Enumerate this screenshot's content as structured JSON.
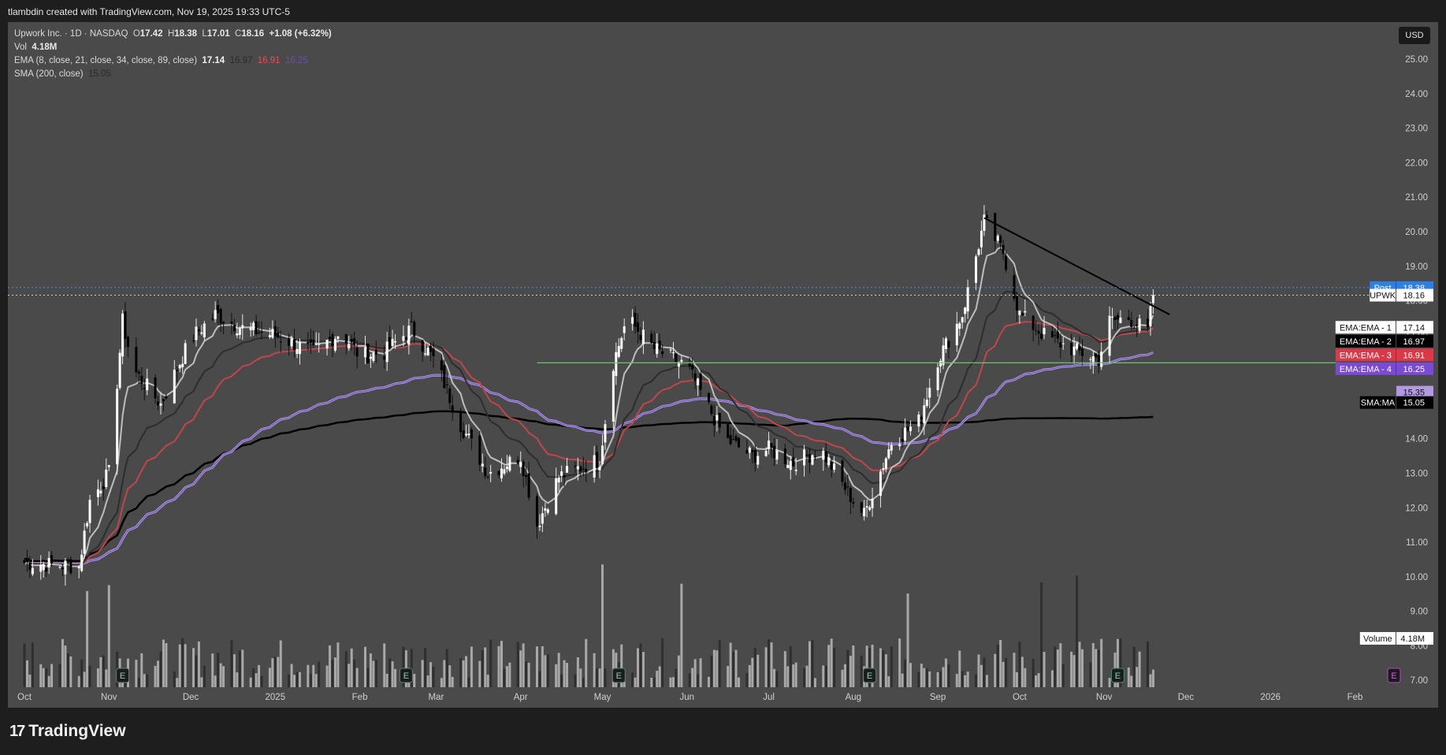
{
  "header": {
    "creator_text": "tlambdin created with TradingView.com, Nov 19, 2025 19:33 UTC-5"
  },
  "legend": {
    "symbol": "Upwork Inc. · 1D · NASDAQ",
    "o_label": "O",
    "o_value": "17.42",
    "h_label": "H",
    "h_value": "18.38",
    "l_label": "L",
    "l_value": "17.01",
    "c_label": "C",
    "c_value": "18.16",
    "change": "+1.08 (+6.32%)",
    "vol_label": "Vol",
    "vol_value": "4.18M",
    "ema_label": "EMA (8, close, 21, close, 34, close, 89, close)",
    "ema_values": [
      "17.14",
      "16.97",
      "16.91",
      "16.25"
    ],
    "sma_label": "SMA (200, close)",
    "sma_value": "15.05"
  },
  "currency": "USD",
  "branding": "TradingView",
  "colors": {
    "background": "#4a4a4a",
    "candle_up": "#ffffff",
    "candle_down": "#000000",
    "ema1": "#bdbdbd",
    "ema2": "#2d2d2d",
    "ema3": "#c0464c",
    "ema4": "#7a5cc0",
    "sma200": "#000000",
    "support_line": "#6cc46c",
    "post_tag": "#2f7fe0"
  },
  "chart_data": {
    "type": "candlestick",
    "symbol": "UPWK",
    "interval": "1D",
    "y_axis": {
      "ticks": [
        "25.00",
        "24.00",
        "23.00",
        "22.00",
        "21.00",
        "20.00",
        "19.00",
        "18.00",
        "17.00",
        "16.00",
        "15.00",
        "14.00",
        "13.00",
        "12.00",
        "11.00",
        "10.00",
        "9.00",
        "8.00",
        "7.00"
      ],
      "range": [
        6.8,
        25.8
      ]
    },
    "x_axis": {
      "ticks": [
        "Oct",
        "Nov",
        "Dec",
        "2025",
        "Feb",
        "Mar",
        "Apr",
        "May",
        "Jun",
        "Jul",
        "Aug",
        "Sep",
        "Oct",
        "Nov",
        "Dec",
        "2026",
        "Feb"
      ]
    },
    "close_series": [
      [
        "2024-10-01",
        10.4
      ],
      [
        "2024-10-21",
        10.3
      ],
      [
        "2024-10-25",
        12.2
      ],
      [
        "2024-11-01",
        13.0
      ],
      [
        "2024-11-06",
        17.4
      ],
      [
        "2024-11-10",
        16.0
      ],
      [
        "2024-11-20",
        15.0
      ],
      [
        "2024-12-01",
        16.9
      ],
      [
        "2024-12-10",
        17.6
      ],
      [
        "2024-12-20",
        17.2
      ],
      [
        "2025-01-01",
        17.0
      ],
      [
        "2025-01-15",
        16.5
      ],
      [
        "2025-01-25",
        17.1
      ],
      [
        "2025-02-01",
        16.4
      ],
      [
        "2025-02-10",
        16.5
      ],
      [
        "2025-02-20",
        17.2
      ],
      [
        "2025-03-01",
        16.2
      ],
      [
        "2025-03-10",
        14.4
      ],
      [
        "2025-03-20",
        13.0
      ],
      [
        "2025-04-01",
        13.5
      ],
      [
        "2025-04-07",
        11.5
      ],
      [
        "2025-04-15",
        12.9
      ],
      [
        "2025-04-30",
        13.4
      ],
      [
        "2025-05-05",
        16.2
      ],
      [
        "2025-05-10",
        17.5
      ],
      [
        "2025-05-20",
        16.6
      ],
      [
        "2025-06-01",
        16.1
      ],
      [
        "2025-06-15",
        14.0
      ],
      [
        "2025-06-25",
        13.5
      ],
      [
        "2025-07-01",
        13.7
      ],
      [
        "2025-07-10",
        13.3
      ],
      [
        "2025-07-20",
        13.7
      ],
      [
        "2025-08-01",
        12.2
      ],
      [
        "2025-08-05",
        11.8
      ],
      [
        "2025-08-15",
        13.9
      ],
      [
        "2025-08-25",
        14.5
      ],
      [
        "2025-09-01",
        16.3
      ],
      [
        "2025-09-10",
        17.6
      ],
      [
        "2025-09-18",
        20.3
      ],
      [
        "2025-09-25",
        19.4
      ],
      [
        "2025-10-01",
        17.6
      ],
      [
        "2025-10-10",
        17.0
      ],
      [
        "2025-10-20",
        16.6
      ],
      [
        "2025-10-30",
        16.3
      ],
      [
        "2025-11-03",
        17.4
      ],
      [
        "2025-11-10",
        17.5
      ],
      [
        "2025-11-17",
        17.1
      ],
      [
        "2025-11-19",
        18.16
      ]
    ],
    "volume": {
      "last": "4.18M"
    },
    "price_tags": [
      {
        "label": "Post",
        "value": "18.38"
      },
      {
        "label": "UPWK",
        "value": "18.16"
      },
      {
        "label": "EMA:EMA - 1",
        "value": "17.14"
      },
      {
        "label": "EMA:EMA - 2",
        "value": "16.97"
      },
      {
        "label": "EMA:EMA - 3",
        "value": "16.91"
      },
      {
        "label": "EMA:EMA - 4",
        "value": "16.25"
      },
      {
        "label": "",
        "value": "15.35"
      },
      {
        "label": "SMA:MA",
        "value": "15.05"
      },
      {
        "label": "Volume",
        "value": "4.18M"
      }
    ],
    "horizontal_lines": [
      {
        "price": 16.2,
        "color": "green"
      }
    ],
    "trendlines": [
      {
        "from": [
          "2025-09-18",
          20.4
        ],
        "to": [
          "2025-11-25",
          17.6
        ]
      }
    ],
    "earnings_marker": "E"
  }
}
